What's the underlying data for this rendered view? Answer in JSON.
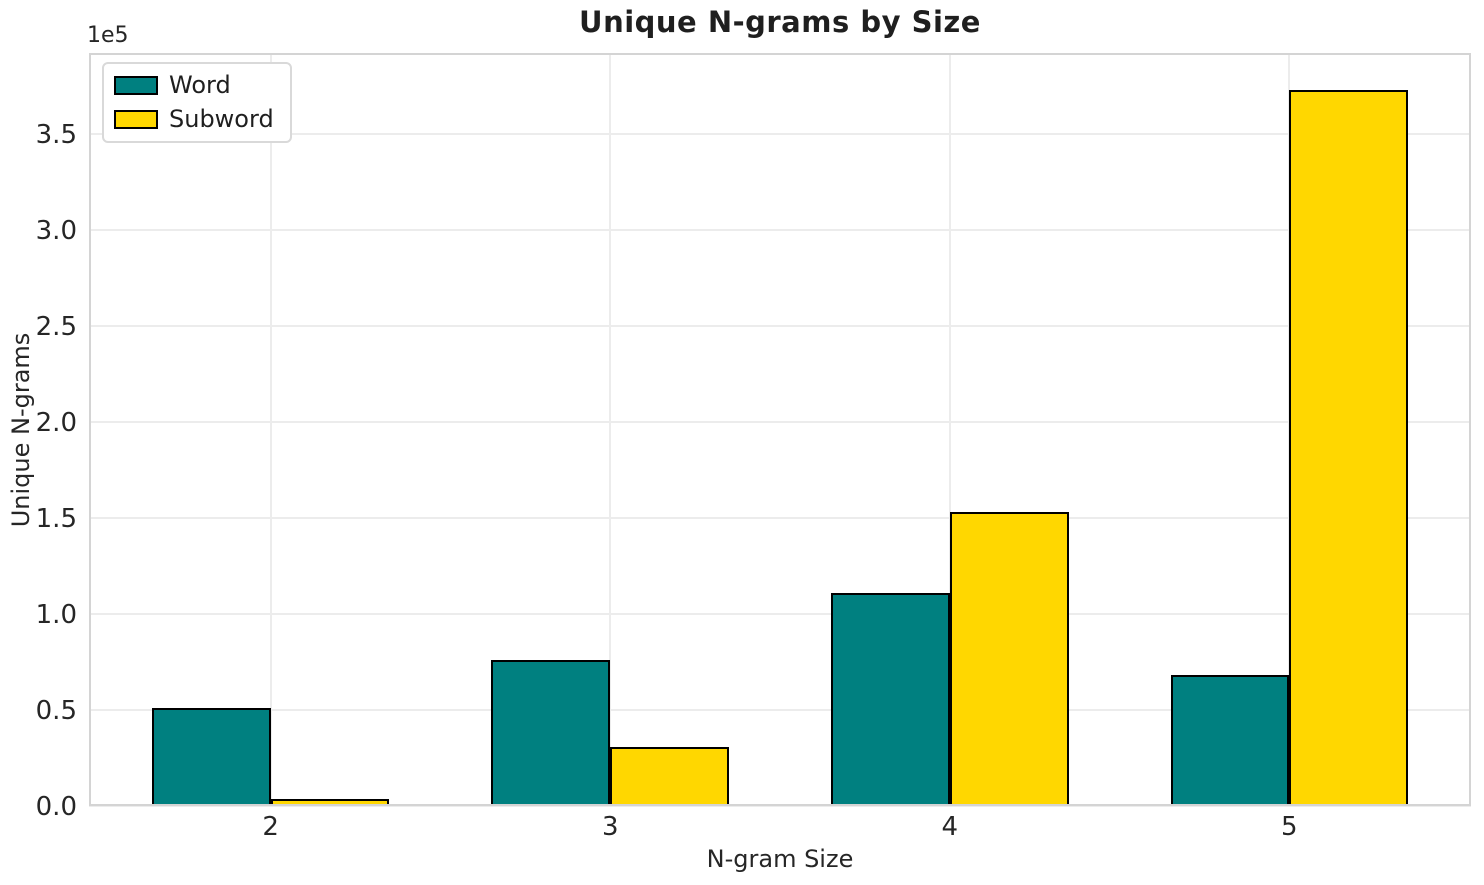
{
  "chart_data": {
    "type": "bar",
    "title": "Unique N-grams by Size",
    "xlabel": "N-gram Size",
    "ylabel": "Unique N-grams",
    "y_offset_label": "1e5",
    "categories": [
      "2",
      "3",
      "4",
      "5"
    ],
    "x": [
      2,
      3,
      4,
      5
    ],
    "series": [
      {
        "name": "Word",
        "color": "#008080",
        "values": [
          51000,
          76000,
          111000,
          68000
        ]
      },
      {
        "name": "Subword",
        "color": "#FFD700",
        "values": [
          3500,
          31000,
          153000,
          373000
        ]
      }
    ],
    "bar_width": 0.35,
    "bar_edge_color": "#000000",
    "xlim": [
      1.465,
      5.535
    ],
    "ylim": [
      0,
      392000
    ],
    "yticks": {
      "values": [
        0,
        50000,
        100000,
        150000,
        200000,
        250000,
        300000,
        350000
      ],
      "labels": [
        "0.0",
        "0.5",
        "1.0",
        "1.5",
        "2.0",
        "2.5",
        "3.0",
        "3.5"
      ]
    },
    "grid": true,
    "legend": {
      "position": "upper left"
    }
  }
}
